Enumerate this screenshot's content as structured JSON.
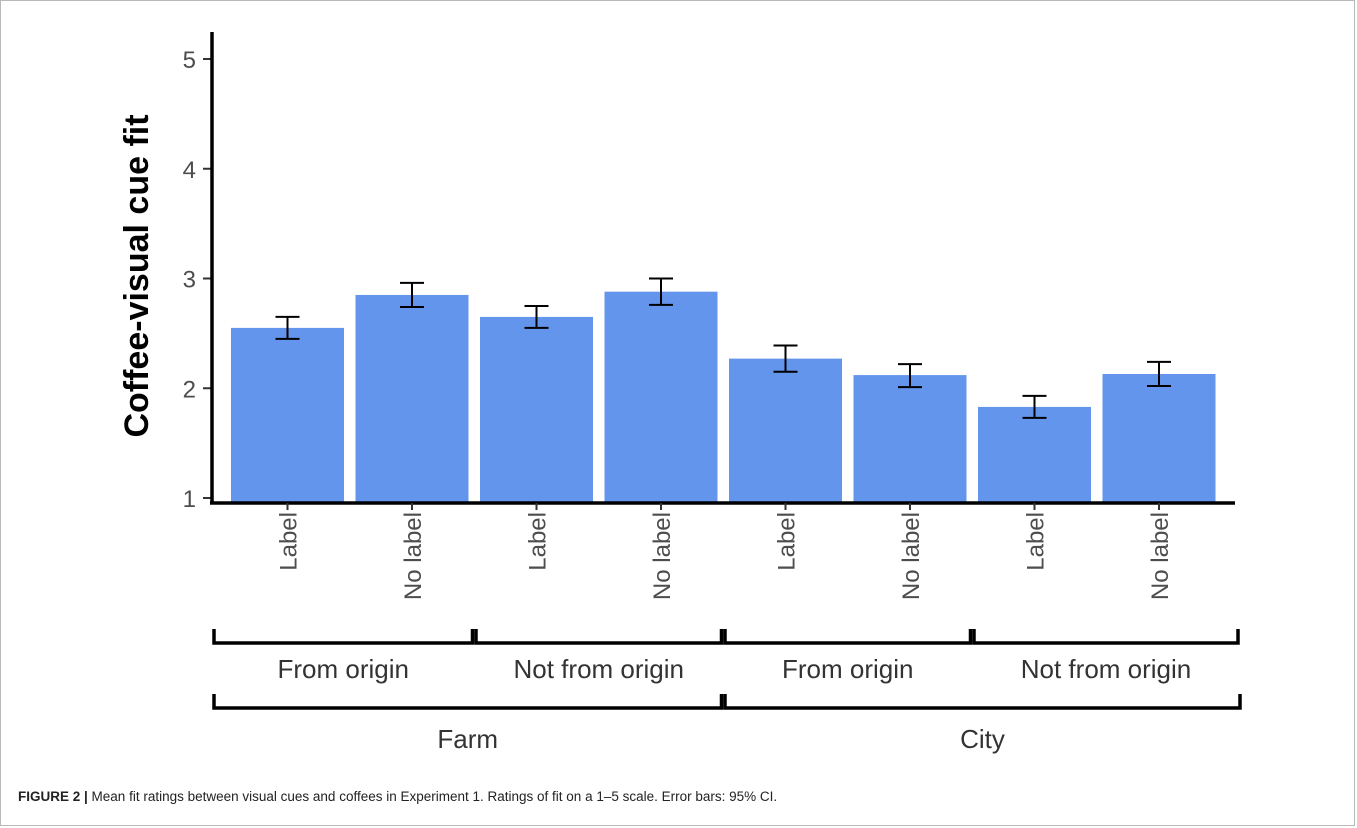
{
  "chart_data": {
    "type": "bar",
    "ylabel": "Coffee-visual cue fit",
    "ylim": [
      1,
      5
    ],
    "yticks": [
      1,
      2,
      3,
      4,
      5
    ],
    "bar_color": "#6495ED",
    "categories": [
      "Label",
      "No label",
      "Label",
      "No label",
      "Label",
      "No label",
      "Label",
      "No label"
    ],
    "values": [
      2.55,
      2.85,
      2.65,
      2.88,
      2.27,
      2.12,
      1.83,
      2.13
    ],
    "ci_low": [
      2.45,
      2.74,
      2.55,
      2.76,
      2.15,
      2.01,
      1.73,
      2.02
    ],
    "ci_high": [
      2.65,
      2.96,
      2.75,
      3.0,
      2.39,
      2.22,
      1.93,
      2.24
    ],
    "group_level1": [
      {
        "label": "From origin",
        "span": [
          0,
          1
        ]
      },
      {
        "label": "Not from origin",
        "span": [
          2,
          3
        ]
      },
      {
        "label": "From origin",
        "span": [
          4,
          5
        ]
      },
      {
        "label": "Not from origin",
        "span": [
          6,
          7
        ]
      }
    ],
    "group_level2": [
      {
        "label": "Farm",
        "span": [
          0,
          3
        ]
      },
      {
        "label": "City",
        "span": [
          4,
          7
        ]
      }
    ]
  },
  "caption": {
    "figure_label": "FIGURE 2 |",
    "text": " Mean fit ratings between visual cues and coffees in Experiment 1. Ratings of fit on a 1–5 scale. Error bars: 95% CI."
  }
}
